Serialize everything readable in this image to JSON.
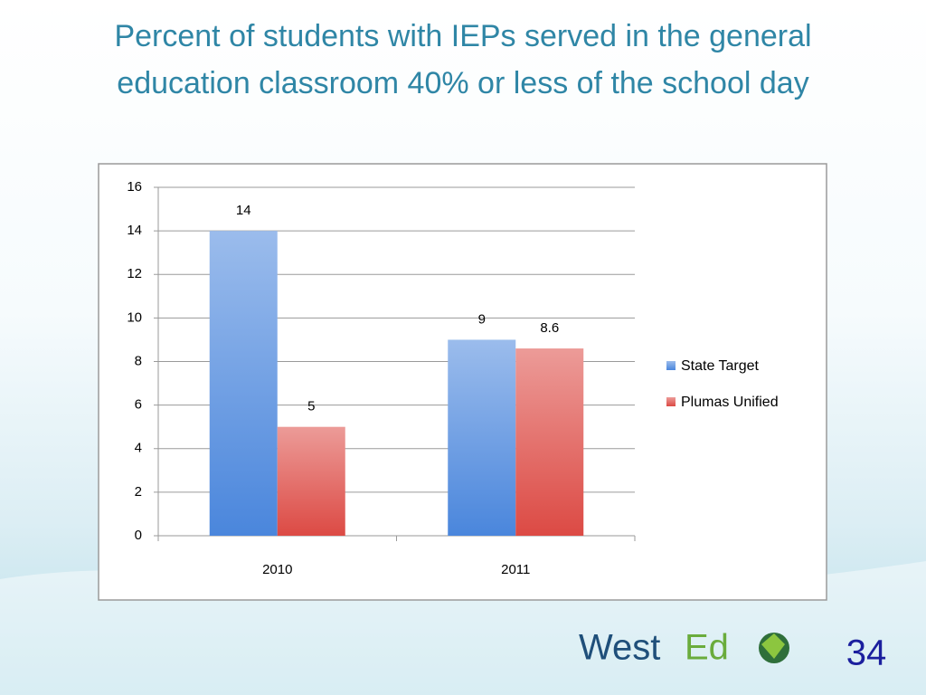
{
  "chart_data": {
    "type": "bar",
    "title": "Percent of students with IEPs served in the general education classroom 40% or less of the school day",
    "categories": [
      "2010",
      "2011"
    ],
    "series": [
      {
        "name": "State Target",
        "color": "#4a86dc",
        "values": [
          14,
          9
        ]
      },
      {
        "name": "Plumas Unified",
        "color": "#dc4a44",
        "values": [
          5,
          8.6
        ]
      }
    ],
    "ylim": [
      0,
      16
    ],
    "yticks": [
      0,
      2,
      4,
      6,
      8,
      10,
      12,
      14,
      16
    ],
    "grid": true,
    "legend": "right"
  },
  "footer": {
    "logo_parts": [
      "West",
      "Ed"
    ],
    "page_number": "34"
  }
}
